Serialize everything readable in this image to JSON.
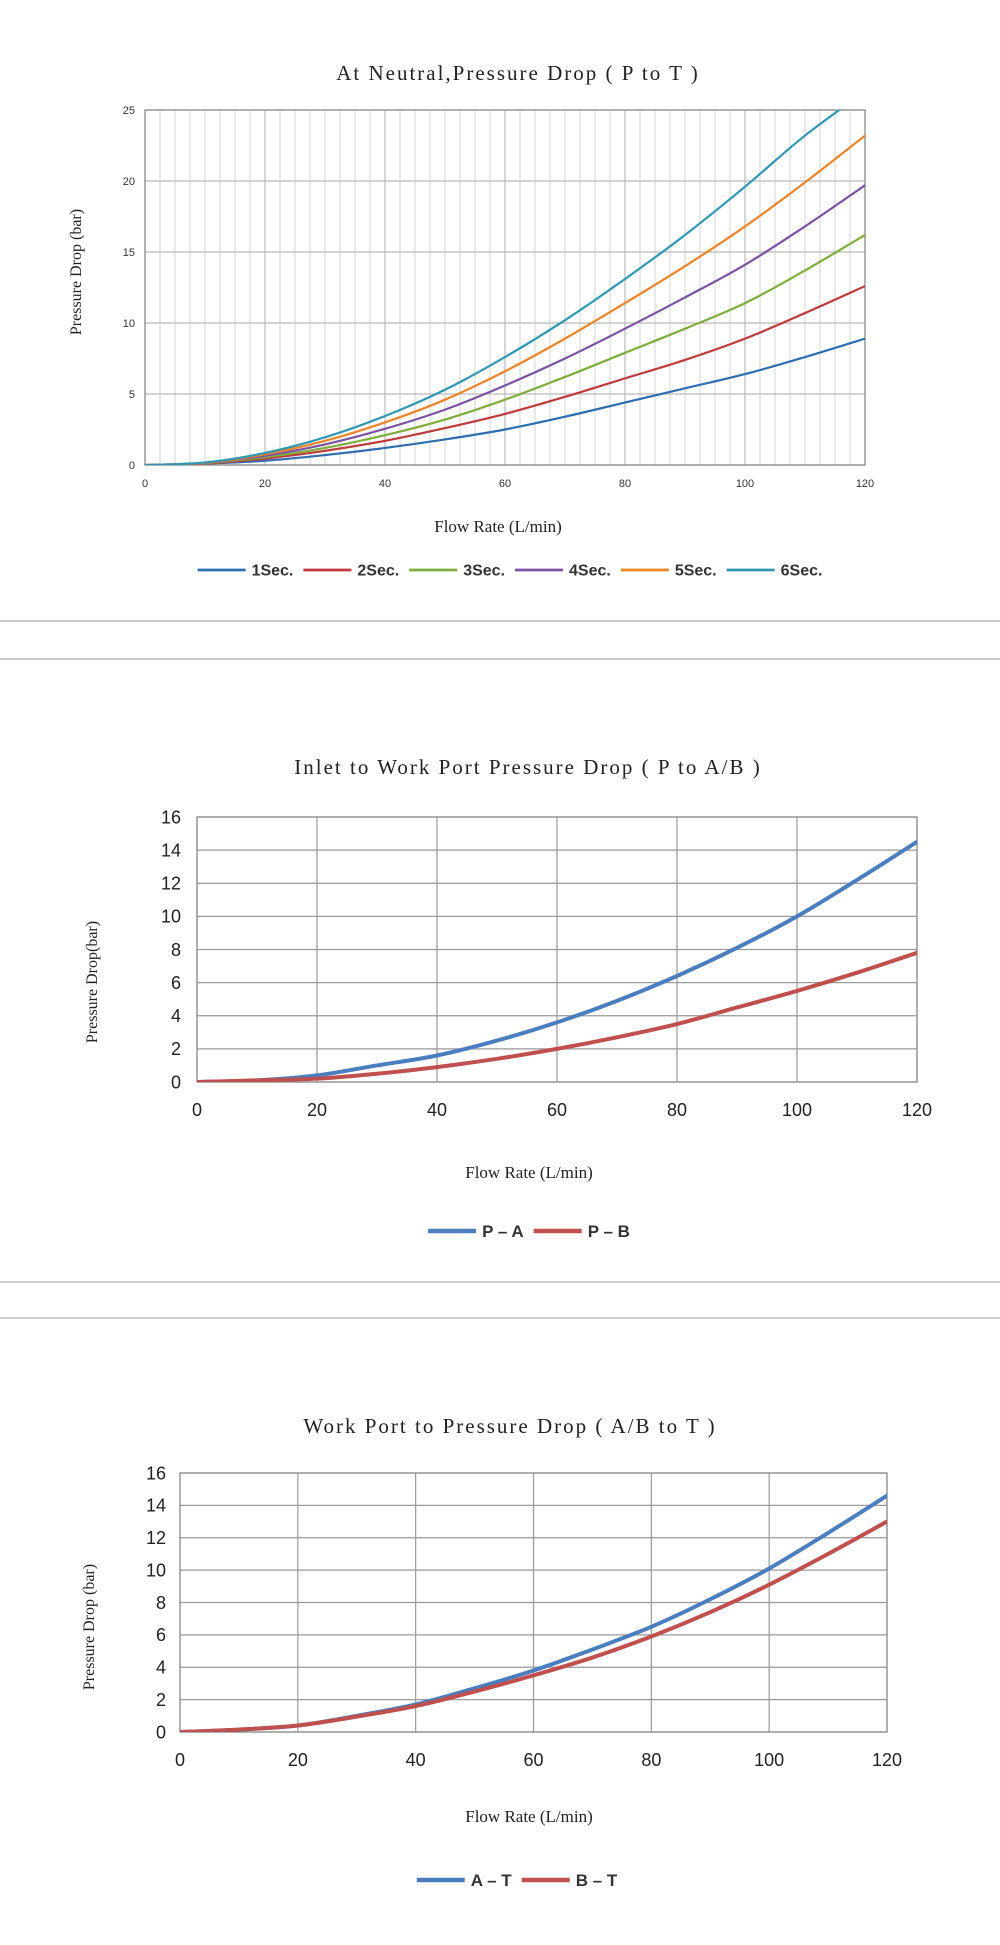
{
  "chart_data": [
    {
      "type": "line",
      "title": "At Neutral,Pressure Drop ( P to T )",
      "xlabel": "Flow Rate (L/min)",
      "ylabel": "Pressure Drop (bar)",
      "xlim": [
        0,
        120
      ],
      "ylim": [
        0,
        25
      ],
      "xticks": [
        0,
        20,
        40,
        60,
        80,
        100,
        120
      ],
      "yticks": [
        0,
        5,
        10,
        15,
        20,
        25
      ],
      "grid": true,
      "legend_position": "bottom",
      "x": [
        0,
        10,
        20,
        30,
        40,
        50,
        60,
        70,
        80,
        90,
        100,
        110,
        120
      ],
      "series": [
        {
          "name": "1Sec.",
          "color": "#2e6eb0",
          "values": [
            0,
            0.1,
            0.3,
            0.7,
            1.2,
            1.8,
            2.5,
            3.4,
            4.4,
            5.4,
            6.4,
            7.6,
            8.9
          ]
        },
        {
          "name": "2Sec.",
          "color": "#c0393b",
          "values": [
            0,
            0.1,
            0.45,
            1.0,
            1.7,
            2.6,
            3.6,
            4.8,
            6.1,
            7.4,
            8.9,
            10.7,
            12.6
          ]
        },
        {
          "name": "3Sec.",
          "color": "#7fae3c",
          "values": [
            0,
            0.12,
            0.55,
            1.2,
            2.1,
            3.2,
            4.6,
            6.2,
            7.9,
            9.6,
            11.4,
            13.7,
            16.2
          ]
        },
        {
          "name": "4Sec.",
          "color": "#7b52a3",
          "values": [
            0,
            0.14,
            0.65,
            1.45,
            2.55,
            3.9,
            5.6,
            7.5,
            9.6,
            11.8,
            14.1,
            16.8,
            19.7
          ]
        },
        {
          "name": "5Sec.",
          "color": "#ee8427",
          "values": [
            0,
            0.16,
            0.75,
            1.7,
            3.0,
            4.6,
            6.6,
            8.9,
            11.4,
            14.0,
            16.8,
            19.9,
            23.2
          ]
        },
        {
          "name": "6Sec.",
          "color": "#2e98b3",
          "values": [
            0,
            0.18,
            0.85,
            1.95,
            3.45,
            5.3,
            7.6,
            10.2,
            13.1,
            16.2,
            19.6,
            23.2,
            26.3
          ]
        }
      ]
    },
    {
      "type": "line",
      "title": "Inlet to Work Port Pressure Drop ( P to A/B )",
      "xlabel": "Flow Rate (L/min)",
      "ylabel": "Pressure Drop(bar)",
      "xlim": [
        0,
        120
      ],
      "ylim": [
        0,
        16
      ],
      "xticks": [
        0,
        20,
        40,
        60,
        80,
        100,
        120
      ],
      "yticks": [
        0,
        2,
        4,
        6,
        8,
        10,
        12,
        14,
        16
      ],
      "grid": true,
      "legend_position": "bottom",
      "x": [
        0,
        10,
        20,
        30,
        40,
        50,
        60,
        70,
        80,
        90,
        100,
        110,
        120
      ],
      "series": [
        {
          "name": "P – A",
          "color": "#4a7ebf",
          "values": [
            0,
            0.1,
            0.4,
            1.0,
            1.6,
            2.5,
            3.6,
            4.9,
            6.4,
            8.1,
            10.0,
            12.2,
            14.5
          ]
        },
        {
          "name": "P – B",
          "color": "#c0504d",
          "values": [
            0,
            0.1,
            0.2,
            0.5,
            0.9,
            1.4,
            2.0,
            2.7,
            3.5,
            4.5,
            5.5,
            6.6,
            7.8
          ]
        }
      ]
    },
    {
      "type": "line",
      "title": "Work Port to Pressure Drop ( A/B to T )",
      "xlabel": "Flow Rate (L/min)",
      "ylabel": "Pressure Drop (bar)",
      "xlim": [
        0,
        120
      ],
      "ylim": [
        0,
        16
      ],
      "xticks": [
        0,
        20,
        40,
        60,
        80,
        100,
        120
      ],
      "yticks": [
        0,
        2,
        4,
        6,
        8,
        10,
        12,
        14,
        16
      ],
      "grid": true,
      "legend_position": "bottom",
      "x": [
        0,
        10,
        20,
        30,
        40,
        50,
        60,
        70,
        80,
        90,
        100,
        110,
        120
      ],
      "series": [
        {
          "name": "A – T",
          "color": "#4a7ebf",
          "values": [
            0,
            0.15,
            0.4,
            1.0,
            1.7,
            2.7,
            3.8,
            5.1,
            6.5,
            8.2,
            10.1,
            12.3,
            14.6
          ]
        },
        {
          "name": "B – T",
          "color": "#c0504d",
          "values": [
            0,
            0.15,
            0.4,
            0.95,
            1.6,
            2.5,
            3.5,
            4.6,
            5.9,
            7.4,
            9.1,
            11.0,
            13.0
          ]
        }
      ]
    }
  ]
}
